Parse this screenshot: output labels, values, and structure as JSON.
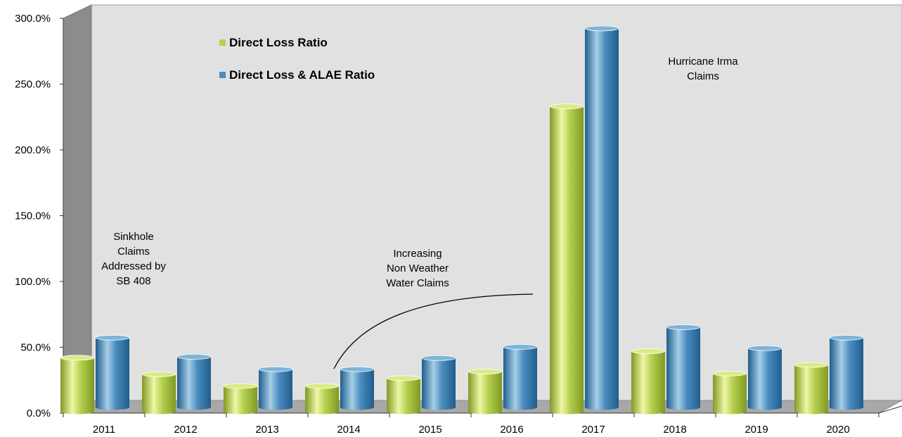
{
  "chart_data": {
    "type": "bar",
    "style": "3d-cylinder",
    "categories": [
      "2011",
      "2012",
      "2013",
      "2014",
      "2015",
      "2016",
      "2017",
      "2018",
      "2019",
      "2020"
    ],
    "series": [
      {
        "name": "Direct Loss Ratio",
        "color": "#b5cf4f",
        "values": [
          41.0,
          28.5,
          19.5,
          19.5,
          25.5,
          30.5,
          232.0,
          46.0,
          29.0,
          35.5
        ]
      },
      {
        "name": "Direct Loss & ALAE Ratio",
        "color": "#4a8cbf",
        "values": [
          53.0,
          38.5,
          29.0,
          29.0,
          37.5,
          46.0,
          288.0,
          61.0,
          45.0,
          53.0
        ]
      }
    ],
    "ylim": [
      0,
      300
    ],
    "yticks": [
      {
        "value": 0,
        "label": "0.0%"
      },
      {
        "value": 50,
        "label": "50.0%"
      },
      {
        "value": 100,
        "label": "100.0%"
      },
      {
        "value": 150,
        "label": "150.0%"
      },
      {
        "value": 200,
        "label": "200.0%"
      },
      {
        "value": 250,
        "label": "250.0%"
      },
      {
        "value": 300,
        "label": "300.0%"
      }
    ],
    "title": "",
    "xlabel": "",
    "ylabel": "",
    "grid": false,
    "legend_position": "top-left",
    "wall_color": "#e1e1e1",
    "floor_color": "#a8a8a8",
    "side_wall_color": "#8c8c8c",
    "annotations": [
      {
        "lines": [
          "Sinkhole",
          "Claims",
          "Addressed by",
          "SB 408"
        ]
      },
      {
        "lines": [
          "Increasing",
          "Non Weather",
          "Water Claims"
        ]
      },
      {
        "lines": [
          "Hurricane Irma",
          "Claims"
        ]
      }
    ]
  }
}
